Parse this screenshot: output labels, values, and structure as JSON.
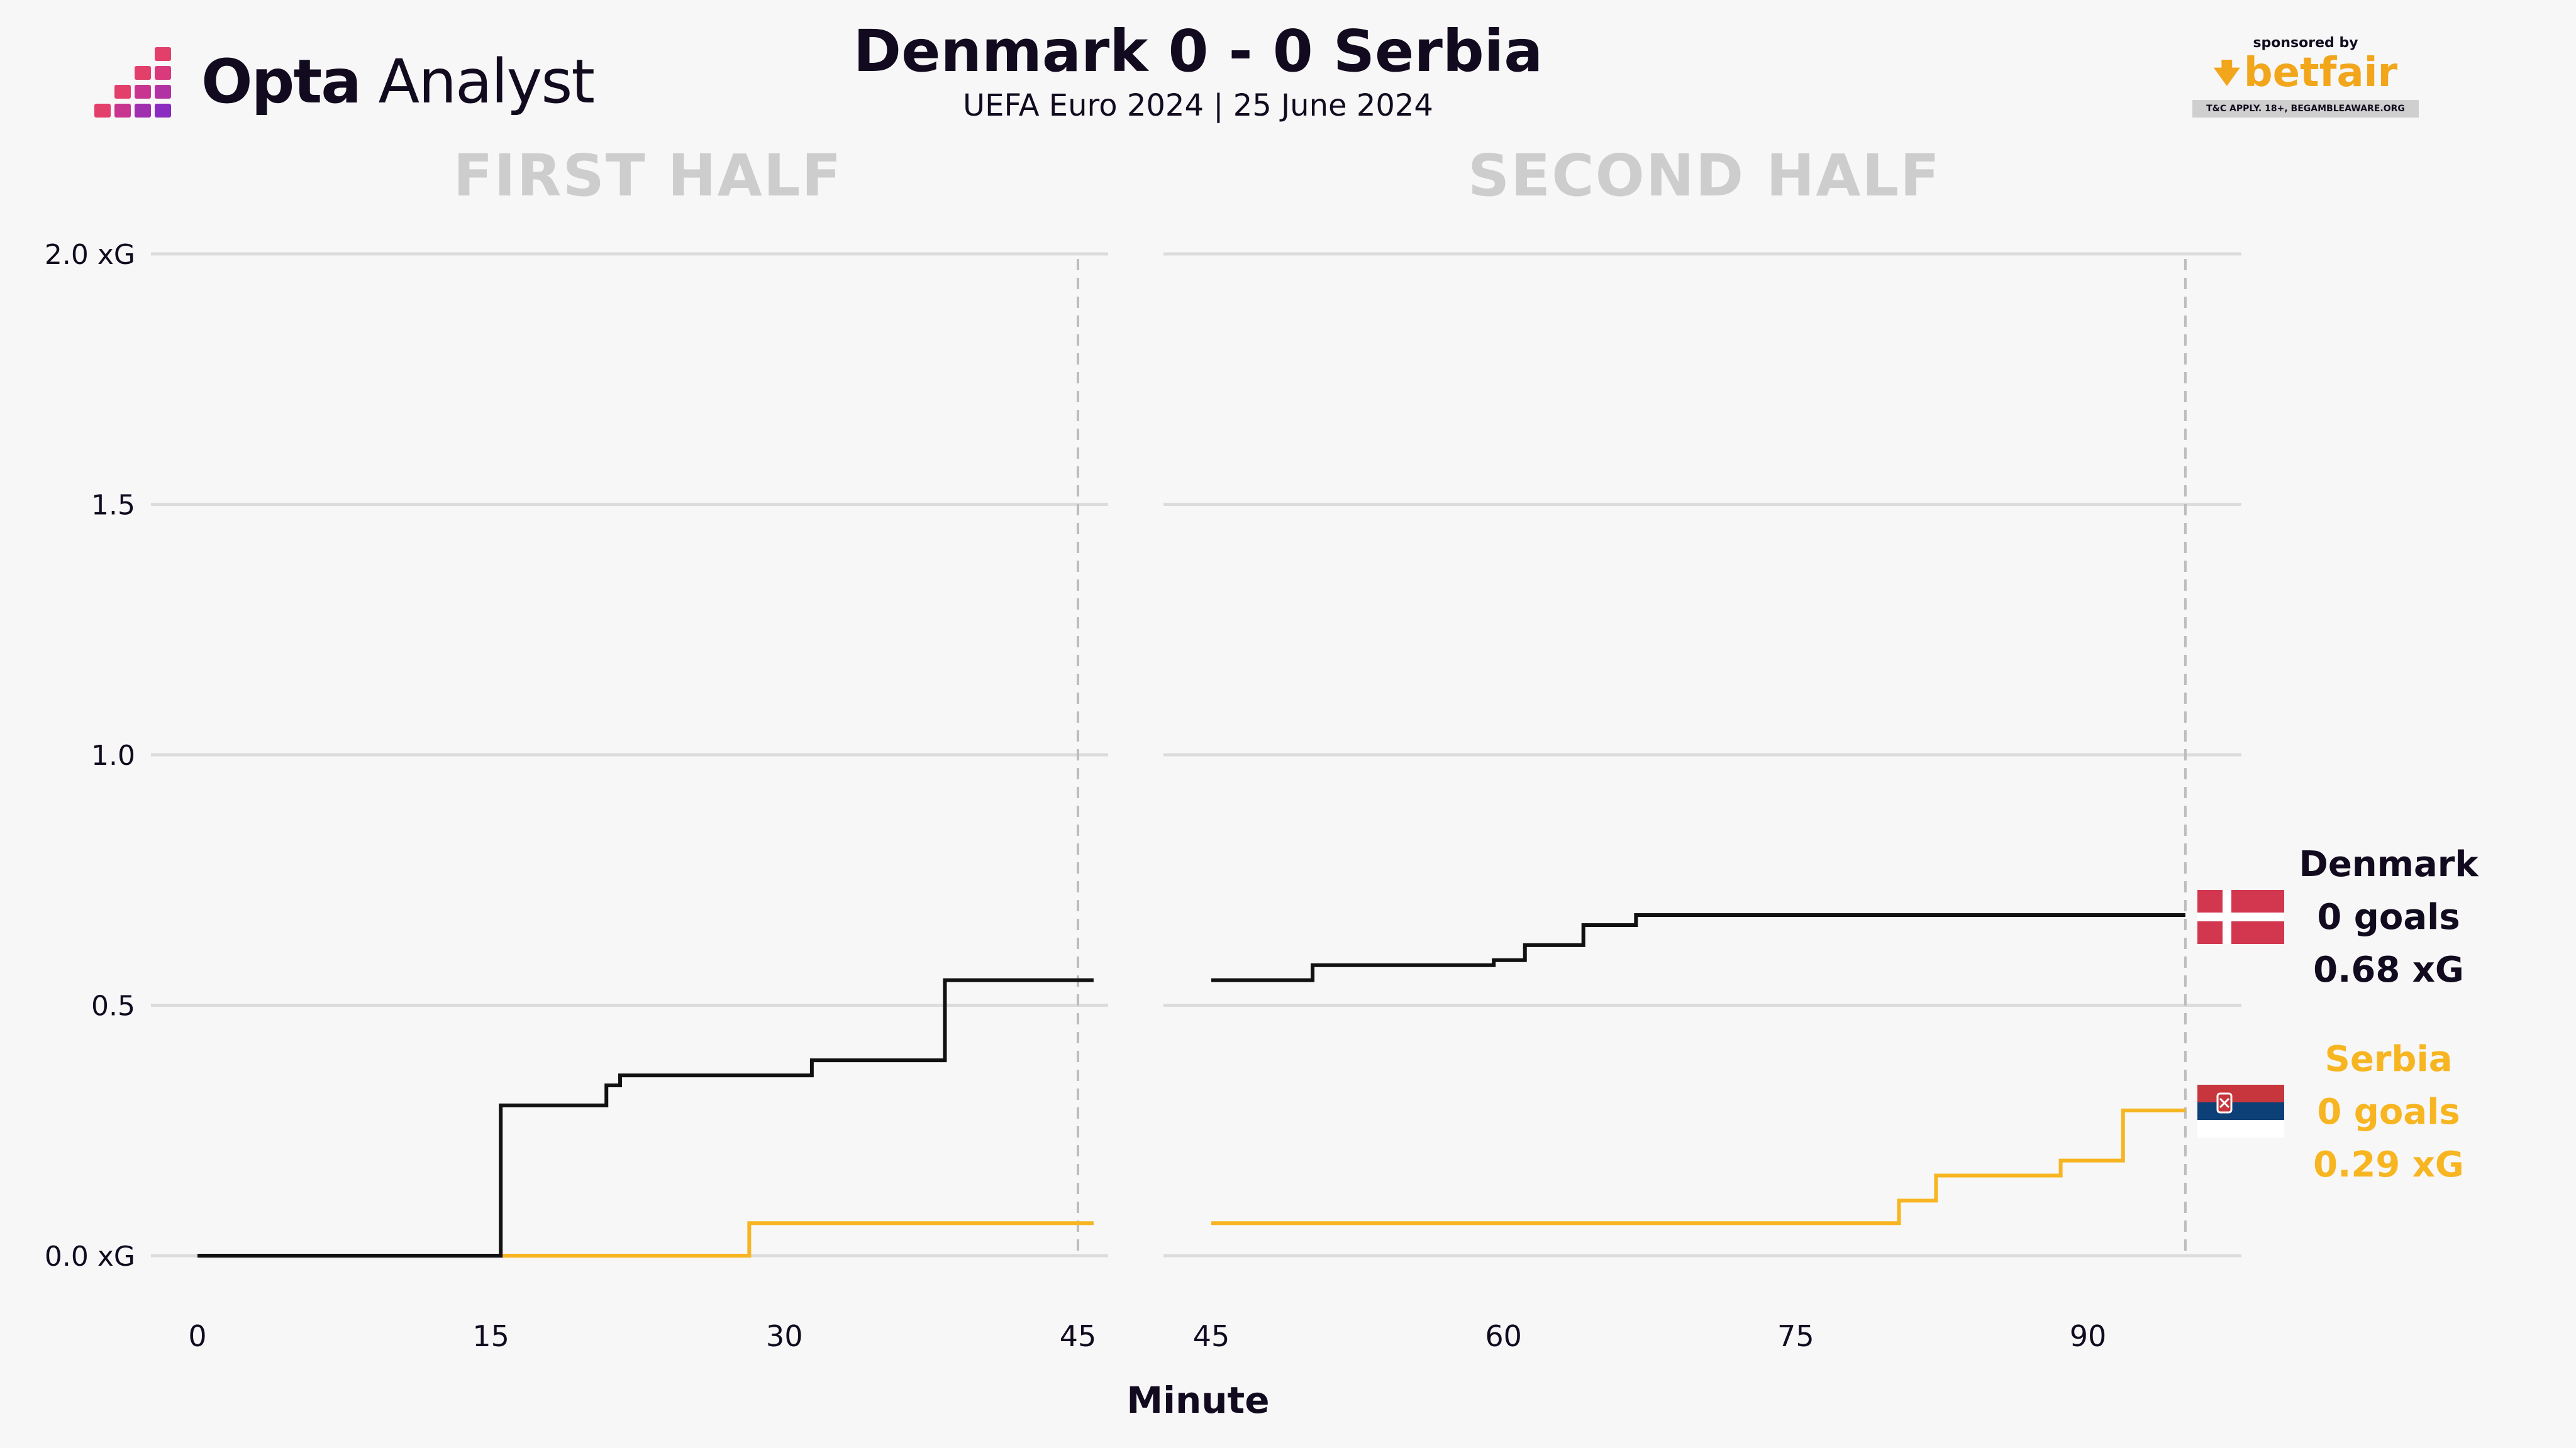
{
  "header": {
    "brand_bold": "Opta",
    "brand_light": "Analyst",
    "title": "Denmark 0 - 0 Serbia",
    "subtitle": "UEFA Euro 2024 | 25 June 2024"
  },
  "sponsor": {
    "by": "sponsored by",
    "name": "betfair",
    "note": "T&C APPLY. 18+, BEGAMBLEAWARE.ORG"
  },
  "teams": {
    "home": {
      "name": "Denmark",
      "goals": "0 goals",
      "xg": "0.68 xG",
      "color": "#111111",
      "flag": "denmark-flag"
    },
    "away": {
      "name": "Serbia",
      "goals": "0 goals",
      "xg": "0.29 xG",
      "color": "#f7b521",
      "flag": "serbia-flag"
    }
  },
  "chart_data": {
    "type": "line",
    "title": "Denmark 0 - 0 Serbia",
    "subtitle": "UEFA Euro 2024 | 25 June 2024",
    "xlabel": "Minute",
    "ylabel": "",
    "ylim": [
      0,
      2.0
    ],
    "yticks": [
      0,
      0.5,
      1.0,
      1.5,
      2.0
    ],
    "ytick_labels": [
      "0.0 xG",
      "0.5",
      "1.0",
      "1.5",
      "2.0 xG"
    ],
    "grid": true,
    "panels": [
      {
        "title": "FIRST HALF",
        "xlim": [
          0,
          45
        ],
        "xticks": [
          0,
          15,
          30,
          45
        ],
        "end_minute": 45,
        "series": [
          {
            "name": "Denmark",
            "step_points": [
              [
                0,
                0
              ],
              [
                15.5,
                0.3
              ],
              [
                20.9,
                0.34
              ],
              [
                21.6,
                0.36
              ],
              [
                31.4,
                0.39
              ],
              [
                38.2,
                0.55
              ],
              [
                45.8,
                0.55
              ]
            ]
          },
          {
            "name": "Serbia",
            "step_points": [
              [
                15.5,
                0
              ],
              [
                28.2,
                0.065
              ],
              [
                45.8,
                0.065
              ]
            ]
          }
        ]
      },
      {
        "title": "SECOND HALF",
        "xlim": [
          45,
          95
        ],
        "xticks": [
          45,
          60,
          75,
          90
        ],
        "end_minute": 95,
        "series": [
          {
            "name": "Denmark",
            "step_points": [
              [
                45,
                0.55
              ],
              [
                50.2,
                0.58
              ],
              [
                59.5,
                0.59
              ],
              [
                61.1,
                0.62
              ],
              [
                64.1,
                0.66
              ],
              [
                66.8,
                0.68
              ],
              [
                95,
                0.68
              ]
            ]
          },
          {
            "name": "Serbia",
            "step_points": [
              [
                45,
                0.065
              ],
              [
                80.3,
                0.11
              ],
              [
                82.2,
                0.16
              ],
              [
                88.6,
                0.19
              ],
              [
                91.8,
                0.29
              ],
              [
                95,
                0.29
              ]
            ]
          }
        ]
      }
    ]
  }
}
